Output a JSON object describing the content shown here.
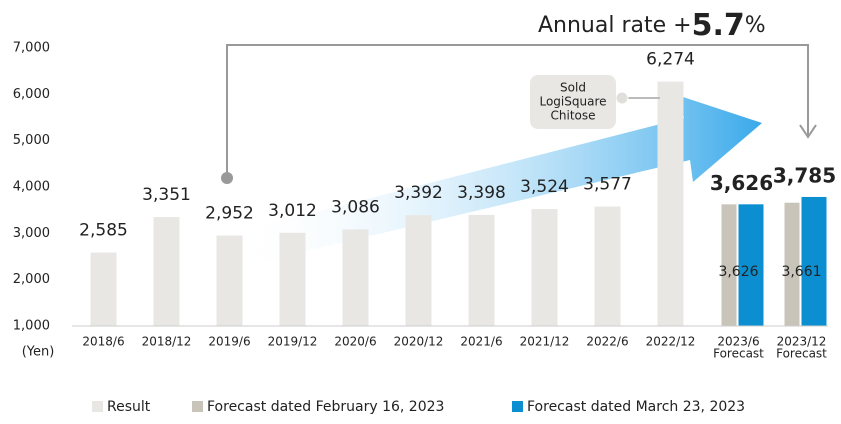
{
  "chart_data": {
    "type": "bar",
    "y_unit_label": "(Yen)",
    "categories": [
      "2018/6",
      "2018/12",
      "2019/6",
      "2019/12",
      "2020/6",
      "2020/12",
      "2021/6",
      "2021/12",
      "2022/6",
      "2022/12",
      "2023/6",
      "2023/12"
    ],
    "category_notes": [
      null,
      null,
      null,
      null,
      null,
      null,
      null,
      null,
      null,
      null,
      "Forecast",
      "Forecast"
    ],
    "series": [
      {
        "name": "Result",
        "color": "#e9e7e4",
        "values": [
          2585,
          3351,
          2952,
          3012,
          3086,
          3392,
          3398,
          3524,
          3577,
          6274,
          null,
          null
        ],
        "value_labels": [
          "2,585",
          "3,351",
          "2,952",
          "3,012",
          "3,086",
          "3,392",
          "3,398",
          "3,524",
          "3,577",
          "6,274",
          null,
          null
        ]
      },
      {
        "name": "Forecast dated February 16, 2023",
        "color": "#c8c4ba",
        "values": [
          null,
          null,
          null,
          null,
          null,
          null,
          null,
          null,
          null,
          null,
          3626,
          3661
        ],
        "value_labels": [
          null,
          null,
          null,
          null,
          null,
          null,
          null,
          null,
          null,
          null,
          "3,626",
          "3,661"
        ]
      },
      {
        "name": "Forecast dated March 23, 2023",
        "color": "#0b8fd1",
        "values": [
          null,
          null,
          null,
          null,
          null,
          null,
          null,
          null,
          null,
          null,
          3626,
          3785
        ],
        "value_labels": [
          null,
          null,
          null,
          null,
          null,
          null,
          null,
          null,
          null,
          null,
          "3,626",
          "3,785"
        ]
      }
    ],
    "ylim": [
      1000,
      7000
    ],
    "yticks": [
      {
        "value": 1000,
        "label": "1,000"
      },
      {
        "value": 2000,
        "label": "2,000"
      },
      {
        "value": 3000,
        "label": "3,000"
      },
      {
        "value": 4000,
        "label": "4,000"
      },
      {
        "value": 5000,
        "label": "5,000"
      },
      {
        "value": 6000,
        "label": "6,000"
      },
      {
        "value": 7000,
        "label": "7,000"
      }
    ],
    "annotation": {
      "prefix": "Annual rate +",
      "value": 5.7,
      "suffix": "%"
    },
    "callout": [
      "Sold",
      "LogiSquare",
      "Chitose"
    ]
  }
}
